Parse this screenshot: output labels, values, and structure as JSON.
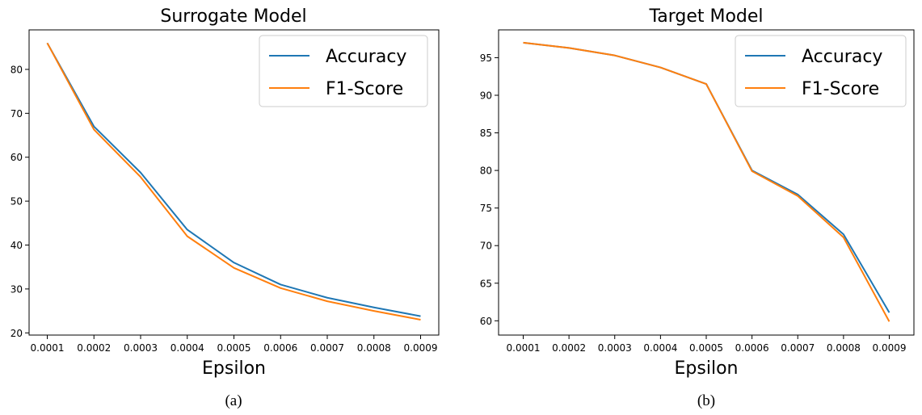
{
  "chart_data": [
    {
      "type": "line",
      "title": "Surrogate Model",
      "xlabel": "Epsilon",
      "ylabel": "",
      "caption": "(a)",
      "x": [
        "0.0001",
        "0.0002",
        "0.0003",
        "0.0004",
        "0.0005",
        "0.0006",
        "0.0007",
        "0.0008",
        "0.0009"
      ],
      "ylim": [
        19.5,
        89
      ],
      "yticks": [
        20,
        30,
        40,
        50,
        60,
        70,
        80
      ],
      "grid": false,
      "legend": "top-right",
      "series": [
        {
          "name": "Accuracy",
          "color": "#1f77b4",
          "values": [
            86.0,
            67.0,
            56.5,
            43.5,
            36.0,
            31.0,
            28.0,
            25.8,
            23.8
          ]
        },
        {
          "name": "F1-Score",
          "color": "#ff7f0e",
          "values": [
            86.0,
            66.3,
            55.5,
            42.0,
            34.8,
            30.2,
            27.2,
            25.0,
            23.0
          ]
        }
      ]
    },
    {
      "type": "line",
      "title": "Target Model",
      "xlabel": "Epsilon",
      "ylabel": "",
      "caption": "(b)",
      "x": [
        "0.0001",
        "0.0002",
        "0.0003",
        "0.0004",
        "0.0005",
        "0.0006",
        "0.0007",
        "0.0008",
        "0.0009"
      ],
      "ylim": [
        58.1,
        98.7
      ],
      "yticks": [
        60,
        65,
        70,
        75,
        80,
        85,
        90,
        95
      ],
      "grid": false,
      "legend": "top-right",
      "series": [
        {
          "name": "Accuracy",
          "color": "#1f77b4",
          "values": [
            97.0,
            96.3,
            95.3,
            93.7,
            91.5,
            80.0,
            76.8,
            71.5,
            61.1
          ]
        },
        {
          "name": "F1-Score",
          "color": "#ff7f0e",
          "values": [
            97.0,
            96.3,
            95.3,
            93.7,
            91.5,
            79.9,
            76.6,
            71.1,
            59.9
          ]
        }
      ]
    }
  ]
}
